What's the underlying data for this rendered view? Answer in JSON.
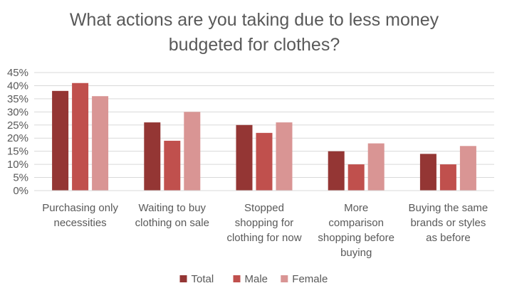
{
  "chart_data": {
    "type": "bar",
    "title_lines": [
      "What actions are you taking due to less money",
      "budgeted for clothes?"
    ],
    "categories": [
      [
        "Purchasing only",
        "necessities"
      ],
      [
        "Waiting to buy",
        "clothing on sale"
      ],
      [
        "Stopped",
        "shopping for",
        "clothing for now"
      ],
      [
        "More",
        "comparison",
        "shopping before",
        "buying"
      ],
      [
        "Buying the same",
        "brands or styles",
        "as before"
      ]
    ],
    "series": [
      {
        "name": "Total",
        "color": "#943634",
        "values": [
          38,
          26,
          25,
          15,
          14
        ]
      },
      {
        "name": "Male",
        "color": "#c0504d",
        "values": [
          41,
          19,
          22,
          10,
          10
        ]
      },
      {
        "name": "Female",
        "color": "#d99594",
        "values": [
          36,
          30,
          26,
          18,
          17
        ]
      }
    ],
    "y_ticks": [
      "0%",
      "5%",
      "10%",
      "15%",
      "20%",
      "25%",
      "30%",
      "35%",
      "40%",
      "45%"
    ],
    "ylim": [
      0,
      45
    ],
    "y_step": 5,
    "grid": true,
    "legend_position": "bottom"
  }
}
